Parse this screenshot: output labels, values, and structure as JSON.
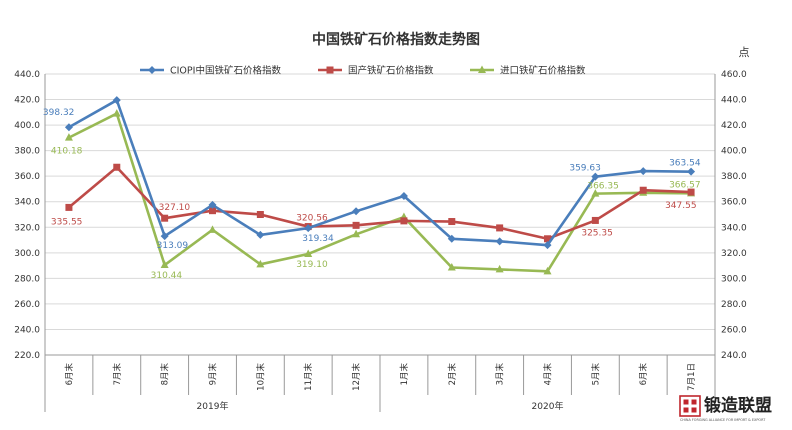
{
  "chart_data": {
    "type": "line",
    "title": "中国铁矿石价格指数走势图",
    "right_unit": "点",
    "categories": [
      "6月末",
      "7月末",
      "8月末",
      "9月末",
      "10月末",
      "11月末",
      "12月末",
      "1月末",
      "2月末",
      "3月末",
      "4月末",
      "5月末",
      "6月末",
      "7月1日"
    ],
    "year_groups": [
      {
        "label": "2019年",
        "start": 0,
        "end": 6
      },
      {
        "label": "2020年",
        "start": 7,
        "end": 13
      }
    ],
    "left_axis": {
      "min": 220,
      "max": 440,
      "step": 20,
      "ticks": [
        "220.0",
        "240.0",
        "260.0",
        "280.0",
        "300.0",
        "320.0",
        "340.0",
        "360.0",
        "380.0",
        "400.0",
        "420.0",
        "440.0"
      ]
    },
    "right_axis": {
      "min": 240,
      "max": 460,
      "step": 20,
      "ticks": [
        "240.0",
        "260.0",
        "280.0",
        "300.0",
        "320.0",
        "340.0",
        "360.0",
        "380.0",
        "400.0",
        "420.0",
        "440.0",
        "460.0"
      ]
    },
    "grid": true,
    "legend_position": "top",
    "series": [
      {
        "name": "CIOPI中国铁矿石价格指数",
        "color": "#4a7ebb",
        "marker": "diamond",
        "axis": "left",
        "values": [
          398.32,
          419.5,
          313.09,
          337.5,
          314.0,
          319.34,
          332.5,
          344.5,
          311.0,
          309.0,
          306.0,
          359.63,
          364.0,
          363.54
        ]
      },
      {
        "name": "国产铁矿石价格指数",
        "color": "#be4b48",
        "marker": "square",
        "axis": "left",
        "values": [
          335.55,
          367.0,
          327.1,
          333.0,
          330.0,
          320.56,
          321.5,
          325.0,
          324.5,
          319.5,
          311.0,
          325.35,
          349.0,
          347.55
        ]
      },
      {
        "name": "进口铁矿石价格指数",
        "color": "#98b954",
        "marker": "triangle",
        "axis": "right",
        "values": [
          410.18,
          429.0,
          310.44,
          338.0,
          311.0,
          319.1,
          334.5,
          348.0,
          308.5,
          307.0,
          305.5,
          366.35,
          367.0,
          366.57
        ]
      }
    ],
    "data_labels": [
      {
        "series": 0,
        "index": 0,
        "text": "398.32"
      },
      {
        "series": 0,
        "index": 2,
        "text": "313.09"
      },
      {
        "series": 0,
        "index": 5,
        "text": "319.34"
      },
      {
        "series": 0,
        "index": 11,
        "text": "359.63"
      },
      {
        "series": 0,
        "index": 13,
        "text": "363.54"
      },
      {
        "series": 1,
        "index": 0,
        "text": "335.55"
      },
      {
        "series": 1,
        "index": 2,
        "text": "327.10"
      },
      {
        "series": 1,
        "index": 5,
        "text": "320.56"
      },
      {
        "series": 1,
        "index": 11,
        "text": "325.35"
      },
      {
        "series": 1,
        "index": 13,
        "text": "347.55"
      },
      {
        "series": 2,
        "index": 0,
        "text": "410.18"
      },
      {
        "series": 2,
        "index": 2,
        "text": "310.44"
      },
      {
        "series": 2,
        "index": 5,
        "text": "319.10"
      },
      {
        "series": 2,
        "index": 11,
        "text": "366.35"
      },
      {
        "series": 2,
        "index": 13,
        "text": "366.57"
      }
    ]
  },
  "logo": {
    "text": "锻造联盟",
    "subtext": "CHINA FORGING ALLIANCE FOR IMPORT & EXPORT",
    "color": "#c0262d"
  }
}
